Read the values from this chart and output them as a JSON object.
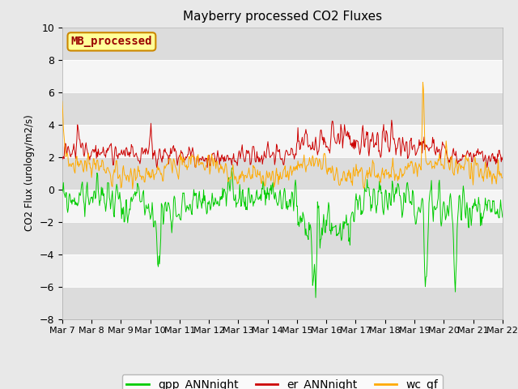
{
  "title": "Mayberry processed CO2 Fluxes",
  "ylabel": "CO2 Flux (urology/m2/s)",
  "ylim": [
    -8,
    10
  ],
  "yticks": [
    -8,
    -6,
    -4,
    -2,
    0,
    2,
    4,
    6,
    8,
    10
  ],
  "xticklabels": [
    "Mar 7",
    "Mar 8",
    "Mar 9",
    "Mar 10",
    "Mar 11",
    "Mar 12",
    "Mar 13",
    "Mar 14",
    "Mar 15",
    "Mar 16",
    "Mar 17",
    "Mar 18",
    "Mar 19",
    "Mar 20",
    "Mar 21",
    "Mar 22"
  ],
  "gpp_color": "#00cc00",
  "er_color": "#cc0000",
  "wc_color": "#ffaa00",
  "mb_box_face": "#ffff99",
  "mb_box_edge": "#cc8800",
  "mb_box_text": "#990000",
  "mb_label": "MB_processed",
  "legend_items": [
    "gpp_ANNnight",
    "er_ANNnight",
    "wc_gf"
  ],
  "fig_bg": "#e8e8e8",
  "ax_bg": "#f5f5f5",
  "band_dark": "#dcdcdc",
  "n_points": 720,
  "seed": 99
}
